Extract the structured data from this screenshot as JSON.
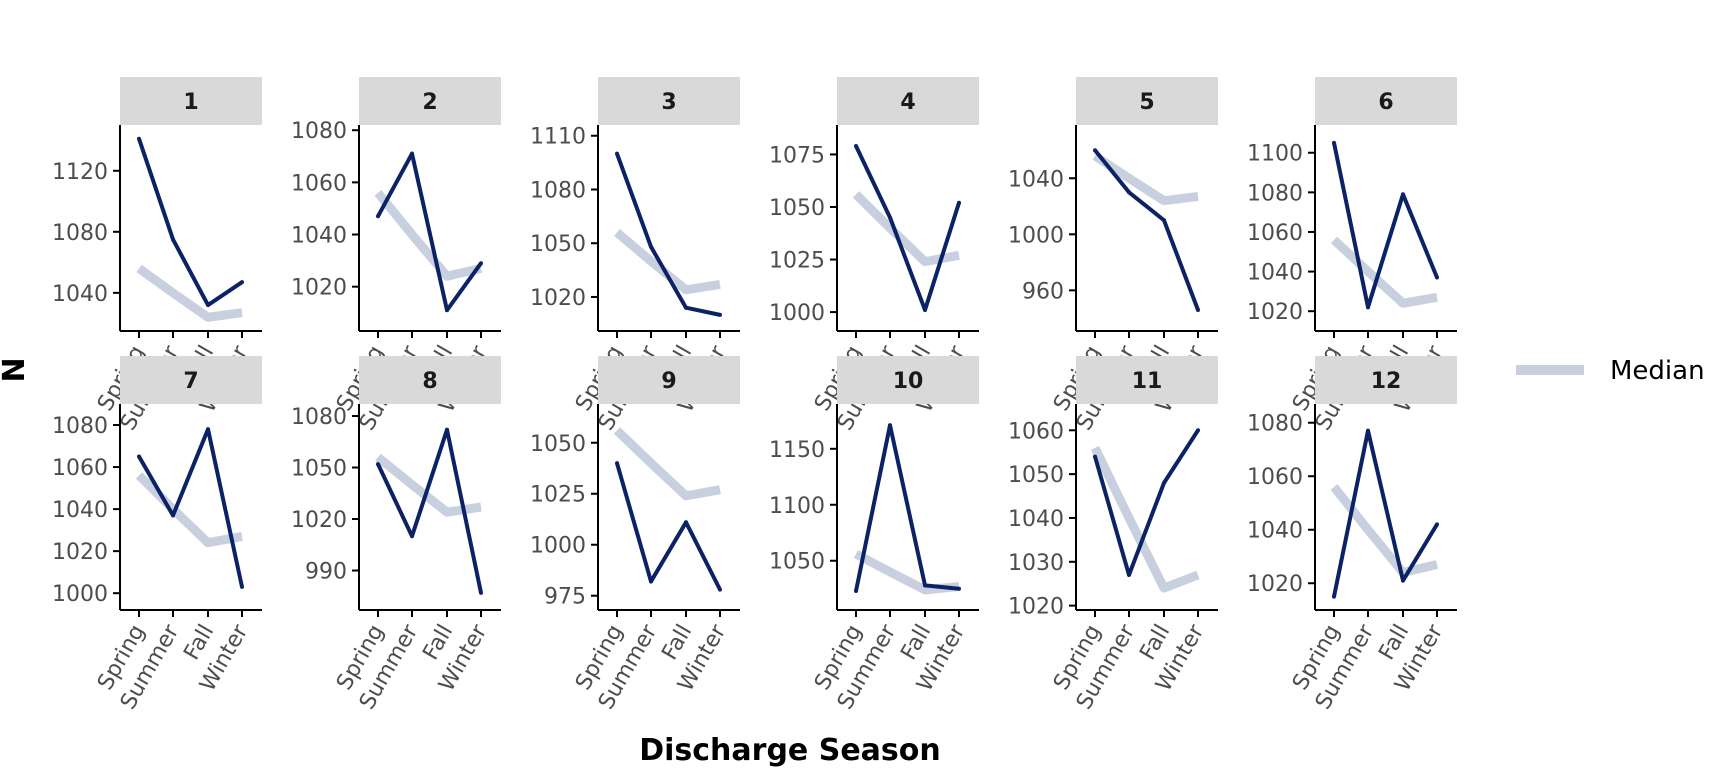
{
  "chart_data": {
    "type": "line",
    "xlabel": "Discharge Season",
    "ylabel": "N",
    "categories": [
      "Spring",
      "Summer",
      "Fall",
      "Winter"
    ],
    "median": [
      1056,
      1040,
      1024,
      1027
    ],
    "legend": {
      "label": "Median",
      "position": "right"
    },
    "colors": {
      "series": "#0b2265",
      "median": "#c8d0e0",
      "strip": "#d9d9d9",
      "axis": "#000000"
    },
    "panels": [
      {
        "title": "1",
        "values": [
          1141,
          1075,
          1032,
          1047
        ],
        "ylim": [
          1015,
          1150
        ],
        "ticks": [
          1040,
          1080,
          1120
        ]
      },
      {
        "title": "2",
        "values": [
          1047,
          1071,
          1011,
          1029
        ],
        "ylim": [
          1003,
          1082
        ],
        "ticks": [
          1020,
          1040,
          1060,
          1080
        ]
      },
      {
        "title": "3",
        "values": [
          1100,
          1048,
          1014,
          1010
        ],
        "ylim": [
          1001,
          1116
        ],
        "ticks": [
          1020,
          1050,
          1080,
          1110
        ]
      },
      {
        "title": "4",
        "values": [
          1079,
          1045,
          1001,
          1052
        ],
        "ylim": [
          991,
          1089
        ],
        "ticks": [
          1000,
          1025,
          1050,
          1075
        ]
      },
      {
        "title": "5",
        "values": [
          1060,
          1030,
          1010,
          946
        ],
        "ylim": [
          931,
          1078
        ],
        "ticks": [
          960,
          1000,
          1040
        ]
      },
      {
        "title": "6",
        "values": [
          1105,
          1022,
          1079,
          1037
        ],
        "ylim": [
          1010,
          1114
        ],
        "ticks": [
          1020,
          1040,
          1060,
          1080,
          1100
        ]
      },
      {
        "title": "7",
        "values": [
          1065,
          1037,
          1078,
          1003
        ],
        "ylim": [
          992,
          1090
        ],
        "ticks": [
          1000,
          1020,
          1040,
          1060,
          1080
        ]
      },
      {
        "title": "8",
        "values": [
          1052,
          1010,
          1072,
          977
        ],
        "ylim": [
          967,
          1087
        ],
        "ticks": [
          990,
          1020,
          1050,
          1080
        ]
      },
      {
        "title": "9",
        "values": [
          1040,
          982,
          1011,
          978
        ],
        "ylim": [
          968,
          1069
        ],
        "ticks": [
          975,
          1000,
          1025,
          1050
        ]
      },
      {
        "title": "10",
        "values": [
          1023,
          1171,
          1028,
          1025
        ],
        "ylim": [
          1006,
          1190
        ],
        "ticks": [
          1050,
          1100,
          1150
        ]
      },
      {
        "title": "11",
        "values": [
          1054,
          1027,
          1048,
          1060
        ],
        "ylim": [
          1019,
          1066
        ],
        "ticks": [
          1020,
          1030,
          1040,
          1050,
          1060
        ]
      },
      {
        "title": "12",
        "values": [
          1015,
          1077,
          1021,
          1042
        ],
        "ylim": [
          1010,
          1087
        ],
        "ticks": [
          1020,
          1040,
          1060,
          1080
        ]
      }
    ]
  }
}
